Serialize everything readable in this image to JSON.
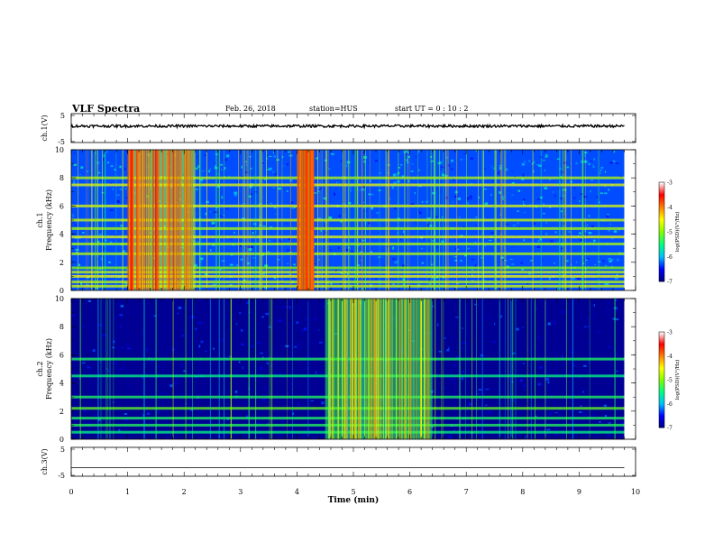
{
  "header": {
    "title": "VLF Spectra",
    "date": "Feb. 26, 2018",
    "station": "station=HUS",
    "start": "start UT =  0 : 10 : 2"
  },
  "chart_data": [
    {
      "type": "line",
      "id": "ch1-waveform",
      "ylabel": "ch.1(V)",
      "ylim": [
        -5,
        5
      ],
      "yticks": [
        "5",
        "-5"
      ],
      "xlim": [
        0,
        10
      ],
      "baseline_v": 0.7,
      "data_end_min": 9.8
    },
    {
      "type": "heatmap",
      "id": "ch1-spectrogram",
      "ylabel_lines": [
        "ch.1",
        "Frequency (kHz)"
      ],
      "ylim": [
        0,
        10
      ],
      "yticks": [
        "0",
        "2",
        "4",
        "6",
        "8",
        "10"
      ],
      "xlim": [
        0,
        10
      ],
      "data_end_min": 9.8,
      "colorbar": {
        "label": "log(PSD)(V²/Hz)",
        "range": [
          -7,
          -3
        ],
        "ticks": [
          "-3",
          "-4",
          "-5",
          "-6",
          "-7"
        ]
      },
      "background_level": -6.3,
      "bands_khz": [
        0.3,
        0.6,
        1.0,
        1.3,
        1.6,
        2.6,
        3.3,
        3.8,
        4.4,
        5.0,
        6.0,
        7.5,
        8.0
      ],
      "bright_time_windows_min": [
        [
          1.0,
          2.2
        ],
        [
          4.0,
          4.3
        ]
      ]
    },
    {
      "type": "heatmap",
      "id": "ch2-spectrogram",
      "ylabel_lines": [
        "ch.2",
        "Frequency (kHz)"
      ],
      "ylim": [
        0,
        10
      ],
      "yticks": [
        "0",
        "2",
        "4",
        "6",
        "8",
        "10"
      ],
      "xlim": [
        0,
        10
      ],
      "data_end_min": 9.8,
      "colorbar": {
        "label": "log(PSD)(V²/Hz)",
        "range": [
          -7,
          -3
        ],
        "ticks": [
          "-3",
          "-4",
          "-5",
          "-6",
          "-7"
        ]
      },
      "background_level": -6.9,
      "bands_khz": [
        0.5,
        1.0,
        1.5,
        2.2,
        3.0,
        4.5,
        5.7
      ],
      "bright_time_windows_min": [
        [
          4.5,
          6.4
        ]
      ]
    },
    {
      "type": "line",
      "id": "ch3-waveform",
      "ylabel": "ch.3(V)",
      "ylim": [
        -5,
        5
      ],
      "yticks": [
        "5",
        "-5"
      ],
      "xlim": [
        0,
        10
      ],
      "baseline_v": -2.0,
      "data_end_min": 9.8
    }
  ],
  "xaxis": {
    "label": "Time (min)",
    "ticks": [
      "0",
      "1",
      "2",
      "3",
      "4",
      "5",
      "6",
      "7",
      "8",
      "9",
      "10"
    ]
  },
  "colors": {
    "colorbar_stops": [
      "#00007a",
      "#0000ff",
      "#00bfff",
      "#00ff80",
      "#7fff00",
      "#ffff00",
      "#ff8000",
      "#ff0000",
      "#ffffff"
    ]
  }
}
